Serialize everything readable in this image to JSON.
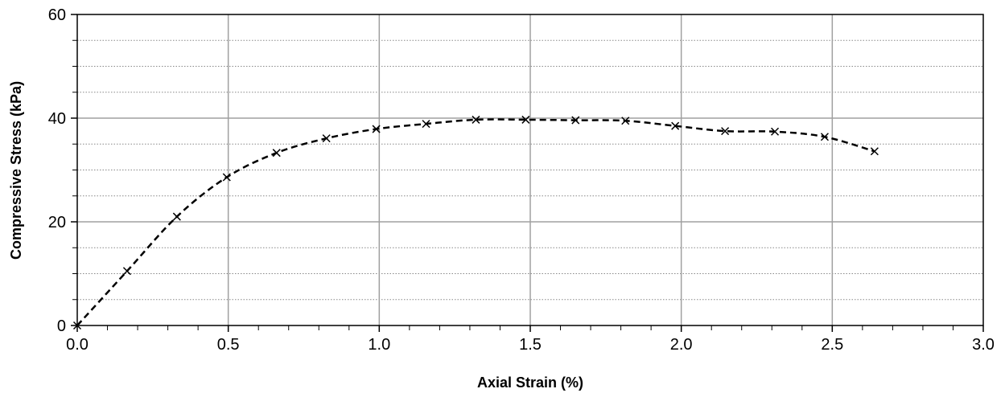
{
  "chart_data": {
    "type": "line",
    "title": "",
    "xlabel": "Axial Strain (%)",
    "ylabel": "Compressive Stress (kPa)",
    "xlim": [
      0,
      3.0
    ],
    "ylim": [
      0,
      60
    ],
    "x_major_ticks": [
      0,
      0.5,
      1.0,
      1.5,
      2.0,
      2.5,
      3.0
    ],
    "x_tick_labels": [
      "0.0",
      "0.5",
      "1.0",
      "1.5",
      "2.0",
      "2.5",
      "3.0"
    ],
    "y_major_ticks": [
      0,
      20,
      40,
      60
    ],
    "y_tick_labels": [
      "0",
      "20",
      "40",
      "60"
    ],
    "x_minor_step": 0.1,
    "y_minor_step": 5,
    "grid": {
      "major": "solid",
      "horizontal_minor": "dotted"
    },
    "legend": "none",
    "colors": {
      "line": "#000000",
      "major_grid": "#a0a0a0",
      "minor_grid": "#888888",
      "axis": "#000000"
    },
    "series": [
      {
        "marker": "x",
        "line_style": "dashed",
        "x": [
          0.0,
          0.165,
          0.33,
          0.495,
          0.66,
          0.825,
          0.99,
          1.155,
          1.32,
          1.485,
          1.65,
          1.815,
          1.98,
          2.145,
          2.31,
          2.475,
          2.64
        ],
        "y": [
          0,
          10.5,
          21.0,
          28.6,
          33.3,
          36.1,
          37.9,
          38.9,
          39.7,
          39.7,
          39.6,
          39.5,
          38.5,
          37.5,
          37.4,
          36.4,
          33.6
        ]
      }
    ]
  }
}
